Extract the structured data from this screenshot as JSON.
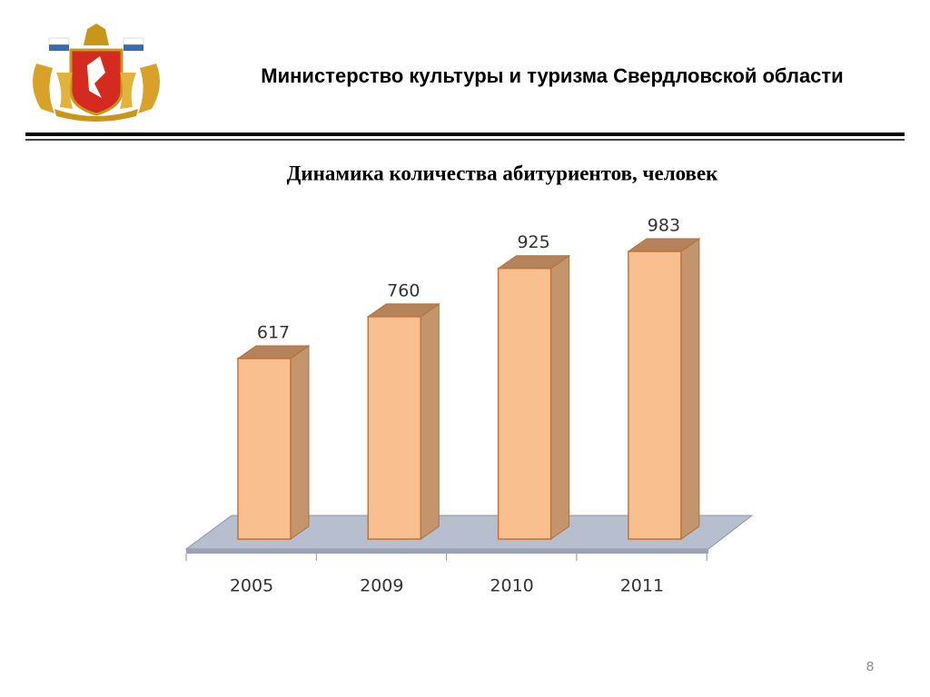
{
  "header": {
    "title": "Министерство культуры  и туризма Свердловской области"
  },
  "chart_data": {
    "type": "bar",
    "title": "Динамика количества абитуриентов, человек",
    "categories": [
      "2005",
      "2009",
      "2010",
      "2011"
    ],
    "values": [
      617,
      760,
      925,
      983
    ],
    "color": "#f9bf8f"
  },
  "page_number": "8"
}
